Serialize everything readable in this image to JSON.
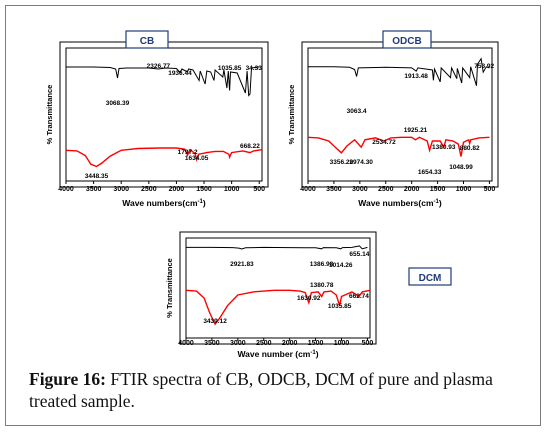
{
  "colors": {
    "pure": "#000000",
    "treated": "#ff0000",
    "panel_border": "#000000",
    "label_box_border": "#1f3c78",
    "label_text": "#1f3c78"
  },
  "chart_data": [
    {
      "type": "line",
      "title": "CB",
      "xlabel": "Wave numbers(cm",
      "xlabel_sup": "-1",
      "xlabel_end": ")",
      "ylabel": "% Transmittance",
      "xlim": [
        4000,
        450
      ],
      "x_ticks": [
        "4000",
        "3500",
        "3000",
        "2500",
        "2000",
        "1500",
        "1000",
        "500"
      ],
      "series": [
        {
          "color": "#000000",
          "points": [
            [
              4000,
              0.82
            ],
            [
              3500,
              0.82
            ],
            [
              3200,
              0.81
            ],
            [
              3100,
              0.78
            ],
            [
              3068,
              0.6
            ],
            [
              3040,
              0.79
            ],
            [
              2900,
              0.8
            ],
            [
              2500,
              0.8
            ],
            [
              2326,
              0.78
            ],
            [
              2200,
              0.8
            ],
            [
              2000,
              0.79
            ],
            [
              1950,
              0.73
            ],
            [
              1936,
              0.7
            ],
            [
              1900,
              0.78
            ],
            [
              1800,
              0.72
            ],
            [
              1780,
              0.78
            ],
            [
              1700,
              0.76
            ],
            [
              1590,
              0.55
            ],
            [
              1570,
              0.74
            ],
            [
              1480,
              0.48
            ],
            [
              1450,
              0.74
            ],
            [
              1380,
              0.72
            ],
            [
              1320,
              0.55
            ],
            [
              1300,
              0.76
            ],
            [
              1160,
              0.62
            ],
            [
              1140,
              0.76
            ],
            [
              1085,
              0.4
            ],
            [
              1060,
              0.74
            ],
            [
              1036,
              0.35
            ],
            [
              1020,
              0.72
            ],
            [
              900,
              0.7
            ],
            [
              750,
              0.3
            ],
            [
              720,
              0.74
            ],
            [
              690,
              0.25
            ],
            [
              668,
              0.28
            ],
            [
              640,
              0.8
            ],
            [
              500,
              0.82
            ]
          ]
        },
        {
          "color": "#ff0000",
          "points": [
            [
              4000,
              0.34
            ],
            [
              3800,
              0.33
            ],
            [
              3650,
              0.25
            ],
            [
              3550,
              0.1
            ],
            [
              3448,
              0.06
            ],
            [
              3350,
              0.12
            ],
            [
              3200,
              0.24
            ],
            [
              3000,
              0.34
            ],
            [
              2700,
              0.37
            ],
            [
              2300,
              0.38
            ],
            [
              2000,
              0.38
            ],
            [
              1850,
              0.36
            ],
            [
              1797,
              0.26
            ],
            [
              1750,
              0.35
            ],
            [
              1660,
              0.28
            ],
            [
              1634,
              0.18
            ],
            [
              1600,
              0.27
            ],
            [
              1450,
              0.3
            ],
            [
              1300,
              0.32
            ],
            [
              1150,
              0.32
            ],
            [
              1050,
              0.27
            ],
            [
              1036,
              0.22
            ],
            [
              1000,
              0.3
            ],
            [
              800,
              0.33
            ],
            [
              668,
              0.3
            ],
            [
              600,
              0.33
            ],
            [
              450,
              0.35
            ]
          ]
        }
      ],
      "annotations_pure": [
        {
          "text": "3068.39",
          "x": 3068
        },
        {
          "text": "2326.77",
          "x": 2326
        },
        {
          "text": "1936.44",
          "x": 1936
        },
        {
          "text": "1035.85",
          "x": 1036
        },
        {
          "text": "34.33",
          "x": 600
        }
      ],
      "annotations_treated": [
        {
          "text": "3448.35",
          "x": 3448
        },
        {
          "text": "1797.2",
          "x": 1797
        },
        {
          "text": "1634.05",
          "x": 1634
        },
        {
          "text": "668.22",
          "x": 668
        }
      ]
    },
    {
      "type": "line",
      "title": "ODCB",
      "xlabel": "Wave numbers(cm",
      "xlabel_sup": "-1",
      "xlabel_end": ")",
      "ylabel": "% Transmittance",
      "xlim": [
        4000,
        450
      ],
      "x_ticks": [
        "4000",
        "3500",
        "3000",
        "2500",
        "2000",
        "1500",
        "1000",
        "500"
      ],
      "series": [
        {
          "color": "#000000",
          "points": [
            [
              4000,
              0.8
            ],
            [
              3500,
              0.8
            ],
            [
              3200,
              0.79
            ],
            [
              3100,
              0.75
            ],
            [
              3063,
              0.62
            ],
            [
              3030,
              0.78
            ],
            [
              2500,
              0.79
            ],
            [
              2000,
              0.78
            ],
            [
              1913,
              0.72
            ],
            [
              1880,
              0.78
            ],
            [
              1600,
              0.74
            ],
            [
              1580,
              0.55
            ],
            [
              1560,
              0.76
            ],
            [
              1450,
              0.52
            ],
            [
              1430,
              0.78
            ],
            [
              1250,
              0.6
            ],
            [
              1230,
              0.78
            ],
            [
              1130,
              0.58
            ],
            [
              1120,
              0.77
            ],
            [
              1035,
              0.5
            ],
            [
              1015,
              0.78
            ],
            [
              880,
              0.6
            ],
            [
              860,
              0.8
            ],
            [
              750,
              0.45
            ],
            [
              730,
              0.85
            ],
            [
              660,
              0.95
            ],
            [
              620,
              0.7
            ],
            [
              560,
              0.8
            ],
            [
              500,
              0.78
            ]
          ]
        },
        {
          "color": "#ff0000",
          "points": [
            [
              4000,
              0.56
            ],
            [
              3800,
              0.55
            ],
            [
              3600,
              0.5
            ],
            [
              3450,
              0.38
            ],
            [
              3356,
              0.31
            ],
            [
              3250,
              0.42
            ],
            [
              3100,
              0.52
            ],
            [
              2974,
              0.4
            ],
            [
              2900,
              0.52
            ],
            [
              2700,
              0.55
            ],
            [
              2534,
              0.5
            ],
            [
              2400,
              0.55
            ],
            [
              2200,
              0.56
            ],
            [
              2000,
              0.56
            ],
            [
              1925,
              0.52
            ],
            [
              1850,
              0.56
            ],
            [
              1700,
              0.5
            ],
            [
              1654,
              0.35
            ],
            [
              1600,
              0.5
            ],
            [
              1450,
              0.5
            ],
            [
              1380,
              0.4
            ],
            [
              1340,
              0.52
            ],
            [
              1200,
              0.5
            ],
            [
              1100,
              0.45
            ],
            [
              1049,
              0.25
            ],
            [
              1000,
              0.48
            ],
            [
              900,
              0.52
            ],
            [
              881,
              0.46
            ],
            [
              860,
              0.52
            ],
            [
              700,
              0.55
            ],
            [
              500,
              0.56
            ]
          ]
        }
      ],
      "annotations_pure": [
        {
          "text": "3063.4",
          "x": 3063
        },
        {
          "text": "1913.48",
          "x": 1913
        },
        {
          "text": "753.92",
          "x": 600
        }
      ],
      "annotations_treated": [
        {
          "text": "3356.29",
          "x": 3356
        },
        {
          "text": "2974.30",
          "x": 2974
        },
        {
          "text": "2534.72",
          "x": 2534
        },
        {
          "text": "1925.21",
          "x": 1925
        },
        {
          "text": "1654.33",
          "x": 1654
        },
        {
          "text": "1380.93",
          "x": 1381
        },
        {
          "text": "1048.99",
          "x": 1049
        },
        {
          "text": "880.82",
          "x": 881
        }
      ]
    },
    {
      "type": "line",
      "title": "DCM",
      "xlabel": "Wave number (cm",
      "xlabel_sup": "-1",
      "xlabel_end": ")",
      "ylabel": "% Transmittance",
      "xlim": [
        4000,
        450
      ],
      "x_ticks": [
        "4000",
        "3500",
        "3000",
        "2500",
        "2000",
        "1500",
        "1000",
        "500"
      ],
      "series": [
        {
          "color": "#000000",
          "points": [
            [
              4000,
              0.86
            ],
            [
              3500,
              0.86
            ],
            [
              3100,
              0.85
            ],
            [
              2980,
              0.83
            ],
            [
              2921,
              0.79
            ],
            [
              2850,
              0.84
            ],
            [
              2500,
              0.86
            ],
            [
              2000,
              0.85
            ],
            [
              1700,
              0.84
            ],
            [
              1500,
              0.84
            ],
            [
              1386,
              0.8
            ],
            [
              1350,
              0.85
            ],
            [
              1100,
              0.84
            ],
            [
              1014,
              0.8
            ],
            [
              980,
              0.85
            ],
            [
              800,
              0.86
            ],
            [
              700,
              0.9
            ],
            [
              655,
              0.92
            ],
            [
              600,
              0.8
            ],
            [
              500,
              0.86
            ]
          ]
        },
        {
          "color": "#ff0000",
          "points": [
            [
              4000,
              0.58
            ],
            [
              3800,
              0.57
            ],
            [
              3650,
              0.48
            ],
            [
              3550,
              0.3
            ],
            [
              3439,
              0.14
            ],
            [
              3350,
              0.22
            ],
            [
              3200,
              0.38
            ],
            [
              3000,
              0.52
            ],
            [
              2700,
              0.56
            ],
            [
              2300,
              0.58
            ],
            [
              2000,
              0.58
            ],
            [
              1800,
              0.57
            ],
            [
              1700,
              0.55
            ],
            [
              1631,
              0.42
            ],
            [
              1580,
              0.55
            ],
            [
              1450,
              0.56
            ],
            [
              1381,
              0.5
            ],
            [
              1340,
              0.56
            ],
            [
              1200,
              0.57
            ],
            [
              1100,
              0.52
            ],
            [
              1036,
              0.38
            ],
            [
              1000,
              0.5
            ],
            [
              800,
              0.56
            ],
            [
              663,
              0.5
            ],
            [
              600,
              0.56
            ],
            [
              450,
              0.58
            ]
          ]
        }
      ],
      "annotations_pure": [
        {
          "text": "2921.83",
          "x": 2921
        },
        {
          "text": "1386.98",
          "x": 1386
        },
        {
          "text": "655.14",
          "x": 655
        },
        {
          "text": "1014.26",
          "x": 1014
        }
      ],
      "annotations_treated": [
        {
          "text": "3439.12",
          "x": 3439
        },
        {
          "text": "1630.92",
          "x": 1631
        },
        {
          "text": "1380.78",
          "x": 1381
        },
        {
          "text": "1035.85",
          "x": 1036
        },
        {
          "text": "662.74",
          "x": 663
        }
      ]
    }
  ],
  "caption": {
    "label": "Figure 16:",
    "text": " FTIR spectra of CB, ODCB, DCM of pure and plasma treated sample."
  }
}
